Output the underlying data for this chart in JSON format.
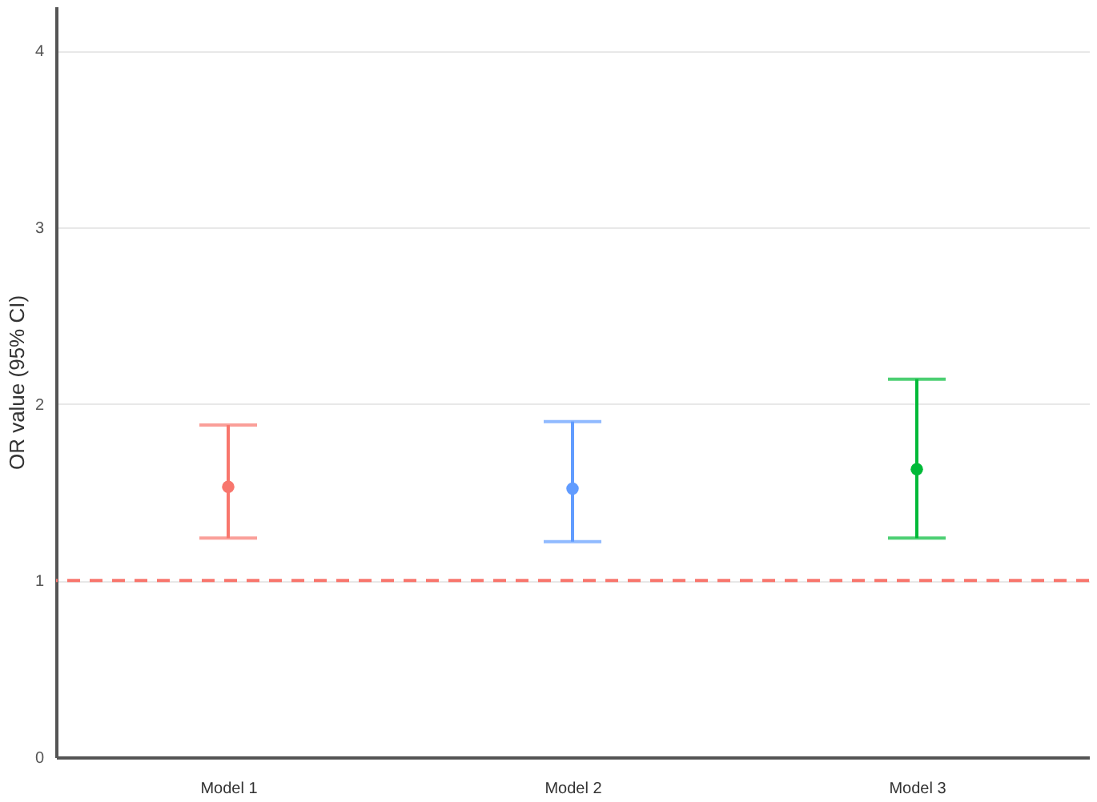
{
  "chart_data": {
    "type": "scatter",
    "ylabel": "OR value (95% CI)",
    "categories": [
      "Model 1",
      "Model 2",
      "Model 3"
    ],
    "values": [
      1.53,
      1.52,
      1.63
    ],
    "errors": [
      [
        1.24,
        1.88
      ],
      [
        1.22,
        1.9
      ],
      [
        1.24,
        2.14
      ]
    ],
    "colors": [
      "#f8766d",
      "#619cff",
      "#00ba38"
    ],
    "ylim": [
      0,
      4.25
    ],
    "yticks": [
      0,
      1,
      2,
      3,
      4
    ],
    "grid": "y",
    "marker": "circle",
    "ref_lines": [
      {
        "axis": "y",
        "value": 1,
        "color": "#f8766d",
        "line_style": "dashed"
      }
    ]
  }
}
